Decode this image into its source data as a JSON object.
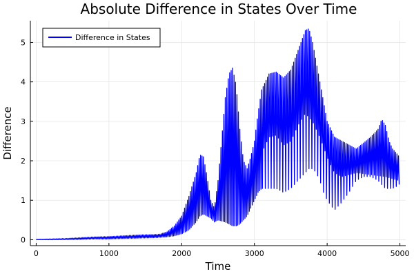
{
  "chart_data": {
    "type": "line",
    "title": "Absolute Difference in States Over Time",
    "xlabel": "Time",
    "ylabel": "Difference",
    "xlim": [
      -80,
      5080
    ],
    "ylim": [
      -0.15,
      5.55
    ],
    "xticks": [
      0,
      1000,
      2000,
      3000,
      4000,
      5000
    ],
    "yticks": [
      0,
      1,
      2,
      3,
      4,
      5
    ],
    "grid": true,
    "legend": {
      "position": "top-left",
      "entries": [
        "Difference in States"
      ]
    },
    "series": [
      {
        "name": "Difference in States",
        "color": "#0000ff",
        "upper_envelope": [
          [
            0,
            0.01
          ],
          [
            200,
            0.02
          ],
          [
            400,
            0.03
          ],
          [
            600,
            0.05
          ],
          [
            800,
            0.07
          ],
          [
            1000,
            0.08
          ],
          [
            1200,
            0.1
          ],
          [
            1400,
            0.12
          ],
          [
            1600,
            0.13
          ],
          [
            1700,
            0.14
          ],
          [
            1800,
            0.2
          ],
          [
            1900,
            0.35
          ],
          [
            2000,
            0.6
          ],
          [
            2100,
            1.1
          ],
          [
            2200,
            1.7
          ],
          [
            2250,
            2.15
          ],
          [
            2300,
            2.1
          ],
          [
            2350,
            1.6
          ],
          [
            2400,
            1.0
          ],
          [
            2450,
            0.8
          ],
          [
            2500,
            1.5
          ],
          [
            2600,
            3.6
          ],
          [
            2650,
            4.2
          ],
          [
            2700,
            4.35
          ],
          [
            2750,
            3.9
          ],
          [
            2800,
            2.8
          ],
          [
            2850,
            2.0
          ],
          [
            2900,
            1.8
          ],
          [
            2950,
            2.1
          ],
          [
            3000,
            2.5
          ],
          [
            3050,
            3.2
          ],
          [
            3100,
            3.8
          ],
          [
            3200,
            4.2
          ],
          [
            3300,
            4.25
          ],
          [
            3400,
            4.1
          ],
          [
            3500,
            4.3
          ],
          [
            3600,
            4.8
          ],
          [
            3700,
            5.3
          ],
          [
            3750,
            5.35
          ],
          [
            3800,
            5.0
          ],
          [
            3850,
            4.5
          ],
          [
            3900,
            4.0
          ],
          [
            3950,
            3.5
          ],
          [
            4000,
            3.0
          ],
          [
            4100,
            2.6
          ],
          [
            4200,
            2.5
          ],
          [
            4300,
            2.4
          ],
          [
            4400,
            2.3
          ],
          [
            4500,
            2.45
          ],
          [
            4600,
            2.6
          ],
          [
            4700,
            2.8
          ],
          [
            4750,
            3.05
          ],
          [
            4800,
            2.9
          ],
          [
            4850,
            2.5
          ],
          [
            4900,
            2.3
          ],
          [
            4950,
            2.2
          ],
          [
            4990,
            2.1
          ]
        ],
        "lower_envelope": [
          [
            0,
            0.0
          ],
          [
            200,
            0.0
          ],
          [
            400,
            0.005
          ],
          [
            600,
            0.01
          ],
          [
            800,
            0.02
          ],
          [
            1000,
            0.02
          ],
          [
            1200,
            0.03
          ],
          [
            1400,
            0.04
          ],
          [
            1600,
            0.05
          ],
          [
            1700,
            0.06
          ],
          [
            1800,
            0.07
          ],
          [
            1900,
            0.1
          ],
          [
            2000,
            0.15
          ],
          [
            2100,
            0.25
          ],
          [
            2200,
            0.45
          ],
          [
            2250,
            0.6
          ],
          [
            2300,
            0.65
          ],
          [
            2350,
            0.6
          ],
          [
            2400,
            0.55
          ],
          [
            2450,
            0.45
          ],
          [
            2500,
            0.5
          ],
          [
            2600,
            0.45
          ],
          [
            2650,
            0.4
          ],
          [
            2700,
            0.35
          ],
          [
            2750,
            0.35
          ],
          [
            2800,
            0.4
          ],
          [
            2850,
            0.5
          ],
          [
            2900,
            0.6
          ],
          [
            2950,
            0.8
          ],
          [
            3000,
            1.0
          ],
          [
            3050,
            1.2
          ],
          [
            3100,
            1.3
          ],
          [
            3200,
            1.3
          ],
          [
            3300,
            1.3
          ],
          [
            3400,
            1.2
          ],
          [
            3500,
            1.3
          ],
          [
            3600,
            1.5
          ],
          [
            3700,
            1.7
          ],
          [
            3750,
            1.8
          ],
          [
            3800,
            1.8
          ],
          [
            3850,
            1.7
          ],
          [
            3900,
            1.5
          ],
          [
            3950,
            1.2
          ],
          [
            4000,
            1.0
          ],
          [
            4100,
            0.75
          ],
          [
            4200,
            0.95
          ],
          [
            4300,
            1.2
          ],
          [
            4400,
            1.5
          ],
          [
            4500,
            1.6
          ],
          [
            4600,
            1.6
          ],
          [
            4700,
            1.5
          ],
          [
            4750,
            1.4
          ],
          [
            4800,
            1.3
          ],
          [
            4850,
            1.3
          ],
          [
            4900,
            1.3
          ],
          [
            4950,
            1.35
          ],
          [
            4990,
            1.4
          ]
        ],
        "mid_band": [
          [
            3100,
            2.6
          ],
          [
            3200,
            3.0
          ],
          [
            3300,
            3.05
          ],
          [
            3400,
            2.8
          ],
          [
            3500,
            2.9
          ],
          [
            3600,
            3.3
          ],
          [
            3700,
            3.6
          ],
          [
            3800,
            3.4
          ],
          [
            3900,
            3.0
          ],
          [
            4000,
            2.5
          ],
          [
            4100,
            2.1
          ],
          [
            4200,
            2.0
          ],
          [
            4400,
            2.1
          ],
          [
            4600,
            2.05
          ],
          [
            4800,
            2.0
          ],
          [
            4990,
            1.9
          ]
        ]
      }
    ]
  }
}
